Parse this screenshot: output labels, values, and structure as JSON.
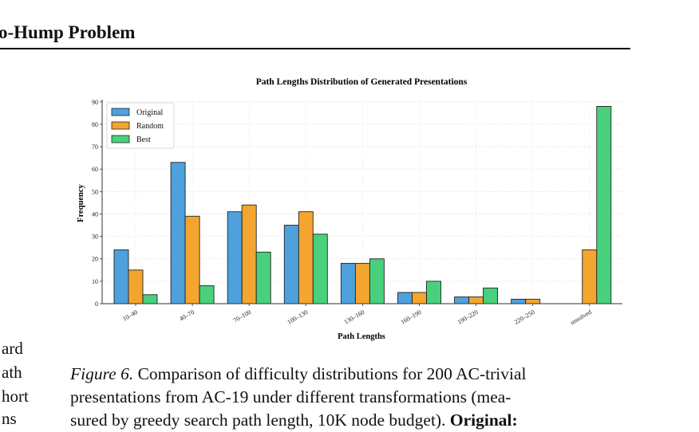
{
  "header": {
    "running_head": "o-Hump Problem"
  },
  "left_column_fragments": [
    "ard",
    "ath",
    "hort",
    "ns"
  ],
  "caption": {
    "figure_label": "Figure 6.",
    "line1_text": " Comparison of difficulty distributions for 200 AC-trivial",
    "line2": "presentations from AC-19 under different transformations (mea-",
    "line3_text": "sured by greedy search path length, 10K node budget). ",
    "line3_bold": "Original:"
  },
  "chart_data": {
    "type": "bar",
    "title": "Path Lengths Distribution of Generated Presentations",
    "xlabel": "Path Lengths",
    "ylabel": "Frequency",
    "categories": [
      "10–40",
      "40–70",
      "70–100",
      "100–130",
      "130–160",
      "160–190",
      "190–220",
      "220–250",
      "unsolved"
    ],
    "series": [
      {
        "name": "Original",
        "color": "#4ea1dc",
        "values": [
          24,
          63,
          41,
          35,
          18,
          5,
          3,
          2,
          0
        ]
      },
      {
        "name": "Random",
        "color": "#f3a530",
        "values": [
          15,
          39,
          44,
          41,
          18,
          5,
          3,
          2,
          24
        ]
      },
      {
        "name": "Best",
        "color": "#49d07c",
        "values": [
          4,
          8,
          23,
          31,
          20,
          10,
          7,
          0,
          88
        ]
      }
    ],
    "yticks": [
      0,
      10,
      20,
      30,
      40,
      50,
      60,
      70,
      80,
      90
    ],
    "ylim": [
      0,
      91
    ],
    "grid": true,
    "legend": "top-left"
  }
}
